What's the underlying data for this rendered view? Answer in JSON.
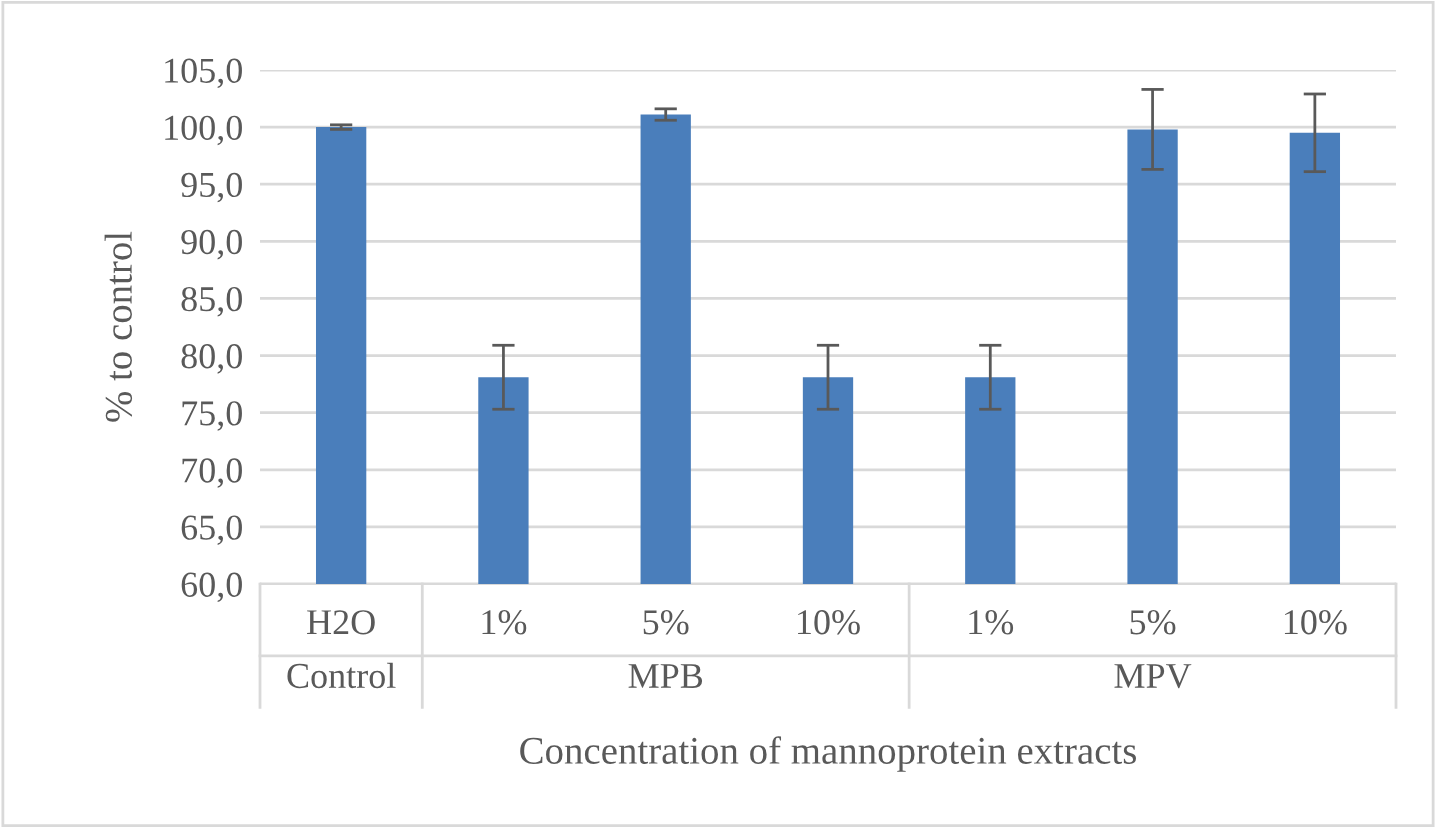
{
  "chart_data": {
    "type": "bar",
    "xlabel": "Concentration of mannoprotein extracts",
    "ylabel": "% to control",
    "categories": [
      "H2O",
      "1%",
      "5%",
      "10%",
      "1%",
      "5%",
      "10%"
    ],
    "values": [
      100.0,
      78.1,
      101.1,
      78.1,
      78.1,
      99.8,
      99.5
    ],
    "errors": [
      0.2,
      2.8,
      0.5,
      2.8,
      2.8,
      3.5,
      3.4
    ],
    "color": "#4a7ebb",
    "ylim": [
      60,
      105
    ],
    "yticks": [
      {
        "value": 60,
        "label": "60,0"
      },
      {
        "value": 65,
        "label": "65,0"
      },
      {
        "value": 70,
        "label": "70,0"
      },
      {
        "value": 75,
        "label": "75,0"
      },
      {
        "value": 80,
        "label": "80,0"
      },
      {
        "value": 85,
        "label": "85,0"
      },
      {
        "value": 90,
        "label": "90,0"
      },
      {
        "value": 95,
        "label": "95,0"
      },
      {
        "value": 100,
        "label": "100,0"
      },
      {
        "value": 105,
        "label": "105,0"
      }
    ],
    "grid": "y",
    "annotations": [
      "Control",
      "MPB",
      "MPV"
    ]
  }
}
